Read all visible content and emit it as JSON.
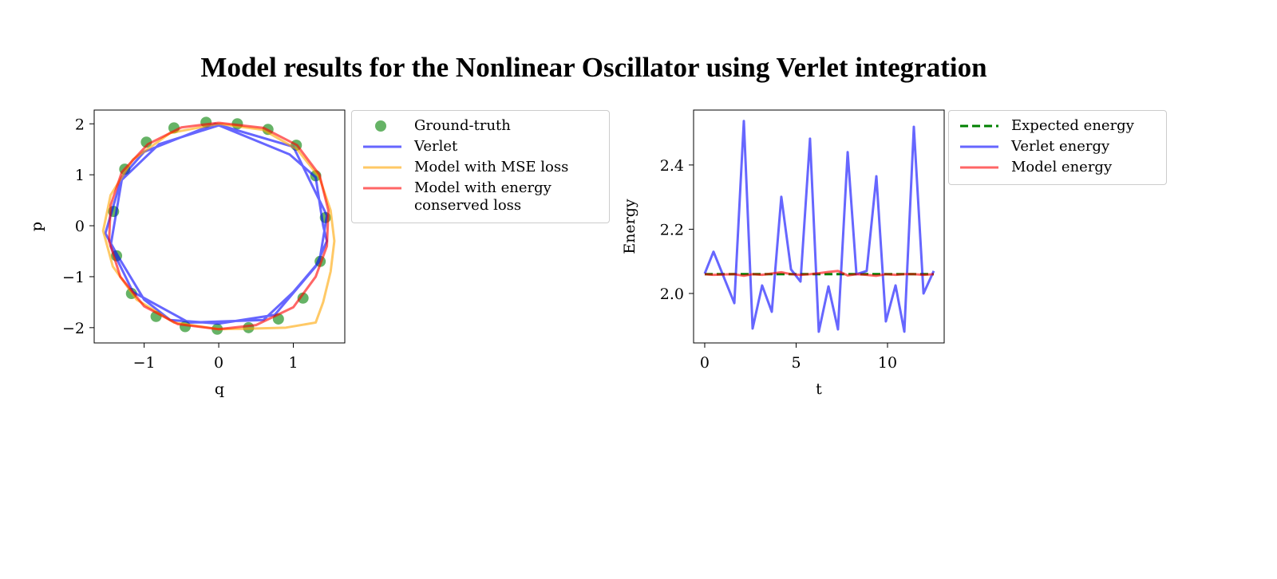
{
  "title": "Model results for the Nonlinear Oscillator using Verlet integration",
  "chart_data": [
    {
      "type": "line",
      "xlabel": "q",
      "ylabel": "p",
      "xlim": [
        -1.67,
        1.69
      ],
      "ylim": [
        -2.3,
        2.27
      ],
      "xticks": [
        {
          "value": -1,
          "label": "−1"
        },
        0,
        1
      ],
      "yticks": [
        {
          "value": -2,
          "label": "−2"
        },
        {
          "value": -1,
          "label": "−1"
        },
        0,
        1,
        2
      ],
      "legend": "outside upper right",
      "series": [
        {
          "name": "Ground-truth",
          "type": "scatter",
          "color": "#008000",
          "x": [
            -0.17,
            0.25,
            0.66,
            1.04,
            1.3,
            1.43,
            1.36,
            1.13,
            0.8,
            0.4,
            -0.02,
            -0.45,
            -0.84,
            -1.17,
            -1.37,
            -1.41,
            -1.26,
            -0.97,
            -0.6
          ],
          "y": [
            2.03,
            2.0,
            1.89,
            1.58,
            0.98,
            0.16,
            -0.7,
            -1.42,
            -1.83,
            -2.0,
            -2.03,
            -1.98,
            -1.78,
            -1.33,
            -0.59,
            0.28,
            1.11,
            1.64,
            1.92
          ]
        },
        {
          "name": "Verlet",
          "type": "line",
          "color": "#0000ff",
          "x": [
            0,
            0.95,
            1.3,
            1.4,
            1.45,
            1.3,
            0.75,
            0,
            -0.65,
            -1.0,
            -1.35,
            -1.52,
            -1.3,
            -1.0,
            -0.05,
            1.0,
            1.45,
            1.35,
            1.0,
            0.6,
            -0.4,
            -1.15,
            -1.45,
            -1.3,
            -0.8,
            0
          ],
          "y": [
            1.97,
            1.4,
            0.95,
            0.0,
            -0.3,
            -0.8,
            -1.75,
            -1.92,
            -1.85,
            -1.45,
            -0.6,
            -0.15,
            0.95,
            1.45,
            2.0,
            1.55,
            0.2,
            -0.7,
            -1.3,
            -1.85,
            -1.9,
            -1.3,
            -0.4,
            0.9,
            1.6,
            1.97
          ]
        },
        {
          "name": "Model with MSE loss",
          "type": "line",
          "color": "#ffa500",
          "x": [
            0,
            0.6,
            1.05,
            1.35,
            1.5,
            1.55,
            1.5,
            1.4,
            1.3,
            0.9,
            0.4,
            0,
            -0.6,
            -1.1,
            -1.42,
            -1.55,
            -1.45,
            -1.15,
            -0.65,
            0
          ],
          "y": [
            2.0,
            1.88,
            1.5,
            0.95,
            0.3,
            -0.3,
            -0.9,
            -1.5,
            -1.9,
            -2.0,
            -2.02,
            -2.03,
            -1.9,
            -1.45,
            -0.8,
            -0.1,
            0.6,
            1.3,
            1.82,
            2.0
          ]
        },
        {
          "name": "Model with energy conserved loss",
          "type": "line",
          "color": "#ff0000",
          "x": [
            0,
            0.6,
            1.05,
            1.35,
            1.47,
            1.45,
            1.3,
            1.0,
            0.5,
            0,
            -0.55,
            -1.0,
            -1.32,
            -1.47,
            -1.45,
            -1.3,
            -0.95,
            -0.5,
            0
          ],
          "y": [
            2.02,
            1.92,
            1.58,
            1.0,
            0.3,
            -0.4,
            -1.0,
            -1.6,
            -1.95,
            -2.03,
            -1.93,
            -1.58,
            -1.0,
            -0.3,
            0.4,
            1.05,
            1.6,
            1.93,
            2.02
          ]
        }
      ]
    },
    {
      "type": "line",
      "xlabel": "t",
      "ylabel": "Energy",
      "xlim": [
        -0.61,
        13.1
      ],
      "ylim": [
        1.846,
        2.571
      ],
      "xticks": [
        0,
        5,
        10
      ],
      "yticks": [
        {
          "value": 2,
          "label": "2.0"
        },
        2.2,
        2.4
      ],
      "legend": "outside upper right",
      "x": [
        0,
        0.48,
        1.62,
        2.14,
        2.62,
        3.14,
        3.67,
        4.19,
        4.72,
        5.24,
        5.76,
        6.24,
        6.77,
        7.29,
        7.82,
        8.3,
        8.86,
        9.39,
        9.91,
        10.44,
        10.92,
        11.44,
        11.97,
        12.53
      ],
      "series": [
        {
          "name": "Expected energy",
          "type": "line",
          "color": "#008000",
          "linestyle": "dashed",
          "values": [
            2.06,
            2.06,
            2.06,
            2.06,
            2.06,
            2.06,
            2.06,
            2.06,
            2.06,
            2.06,
            2.06,
            2.06,
            2.06,
            2.06,
            2.06,
            2.06,
            2.06,
            2.06,
            2.06,
            2.06,
            2.06,
            2.06,
            2.06,
            2.06
          ]
        },
        {
          "name": "Verlet energy",
          "type": "line",
          "color": "#0000ff",
          "values": [
            2.062,
            2.13,
            1.97,
            2.537,
            1.891,
            2.025,
            1.943,
            2.301,
            2.075,
            2.037,
            2.482,
            1.881,
            2.022,
            1.888,
            2.44,
            2.06,
            2.07,
            2.365,
            1.913,
            2.025,
            1.881,
            2.519,
            2.0,
            2.07
          ]
        },
        {
          "name": "Model energy",
          "type": "line",
          "color": "#ff0000",
          "values": [
            2.06,
            2.058,
            2.06,
            2.055,
            2.06,
            2.058,
            2.062,
            2.066,
            2.06,
            2.058,
            2.06,
            2.063,
            2.067,
            2.07,
            2.056,
            2.06,
            2.058,
            2.055,
            2.06,
            2.058,
            2.06,
            2.06,
            2.058,
            2.06
          ]
        }
      ]
    }
  ]
}
